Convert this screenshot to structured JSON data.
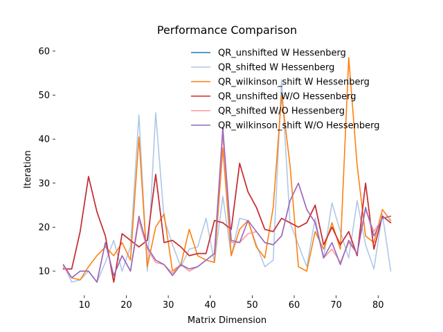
{
  "chart_data": {
    "type": "line",
    "title": "Performance Comparison",
    "xlabel": "Matrix Dimension",
    "ylabel": "Iteration",
    "xlim": [
      3.1,
      84.9
    ],
    "ylim": [
      4.5,
      62.5
    ],
    "xticks": [
      10,
      20,
      30,
      40,
      50,
      60,
      70,
      80
    ],
    "yticks": [
      10,
      20,
      30,
      40,
      50,
      60
    ],
    "grid": false,
    "legend_position": "top-right",
    "x": [
      5,
      7,
      9,
      11,
      13,
      15,
      17,
      19,
      21,
      23,
      25,
      27,
      29,
      31,
      33,
      35,
      37,
      39,
      41,
      43,
      45,
      47,
      49,
      51,
      53,
      55,
      57,
      59,
      61,
      63,
      65,
      67,
      69,
      71,
      73,
      75,
      77,
      79,
      81,
      83
    ],
    "series": [
      {
        "name": "QR_unshifted W Hessenberg",
        "color": "#1f77b4",
        "values": [
          10.5,
          10.5,
          19,
          31.5,
          23.5,
          18,
          7.5,
          18.5,
          17,
          15.5,
          17,
          32,
          16.5,
          17,
          15.5,
          13.5,
          14,
          14,
          21.5,
          21,
          19.5,
          34.5,
          28,
          24.5,
          19.5,
          19,
          22,
          21,
          20,
          21,
          25,
          16,
          20,
          16,
          19,
          13.5,
          30,
          15,
          22.5,
          21
        ]
      },
      {
        "name": "QR_shifted W Hessenberg",
        "color": "#aec7e8",
        "values": [
          11.5,
          7.5,
          8,
          10,
          7.5,
          12,
          17,
          10,
          15.5,
          45.5,
          10,
          46,
          22,
          16,
          11,
          15,
          15.5,
          22,
          12,
          27,
          13.5,
          22,
          21.5,
          16,
          11,
          12.5,
          53.5,
          21,
          16,
          11,
          22,
          13,
          25.5,
          19,
          13,
          26,
          16,
          10.5,
          23,
          10
        ]
      },
      {
        "name": "QR_wilkinson_shift W Hessenberg",
        "color": "#ff7f0e",
        "values": [
          11,
          8.5,
          8,
          11,
          13.5,
          15.5,
          13.5,
          16.5,
          12.5,
          40.5,
          11,
          20,
          23,
          10,
          11.5,
          19.5,
          13.5,
          12.5,
          12,
          38,
          13.5,
          19.5,
          21.5,
          15.5,
          13,
          24.5,
          50,
          34,
          11,
          10,
          19,
          15,
          21,
          15,
          58.5,
          34,
          18,
          16.5,
          24,
          21.5
        ]
      },
      {
        "name": "QR_unshifted W/O Hessenberg",
        "color": "#d62728",
        "values": [
          10.5,
          10.5,
          19,
          31.5,
          23.5,
          18,
          7.5,
          18.5,
          17,
          15.5,
          17,
          32,
          16.5,
          17,
          15.5,
          13.5,
          14,
          14,
          21.5,
          21,
          19.5,
          34.5,
          28,
          24.5,
          19.5,
          19,
          22,
          21,
          20,
          21,
          25,
          16,
          20,
          16,
          19,
          13.5,
          30,
          15,
          22.5,
          21
        ]
      },
      {
        "name": "QR_shifted W/O Hessenberg",
        "color": "#ff9896",
        "values": [
          11,
          8.5,
          10,
          10,
          7.5,
          16.5,
          9,
          13.5,
          10,
          21.5,
          15,
          12,
          11.5,
          9.5,
          11.5,
          10,
          11,
          12.5,
          14,
          41,
          16.5,
          16.5,
          18.5,
          19,
          16.5,
          16,
          18,
          26,
          30,
          24,
          21,
          13,
          15,
          12,
          16.5,
          14,
          24,
          19,
          22,
          22.5
        ]
      },
      {
        "name": "QR_wilkinson_shift W/O Hessenberg",
        "color": "#9467bd",
        "values": [
          11.5,
          8.5,
          10,
          10,
          7.5,
          16.5,
          9,
          13.5,
          10,
          22.5,
          15.5,
          12.5,
          11.5,
          9,
          11.5,
          10.5,
          11,
          12.5,
          14,
          42.5,
          17,
          16.5,
          21.5,
          19,
          16.5,
          16,
          18,
          26,
          30,
          24,
          21,
          13,
          16.5,
          11.5,
          17,
          14,
          24.5,
          18,
          22,
          22.5
        ]
      }
    ]
  }
}
